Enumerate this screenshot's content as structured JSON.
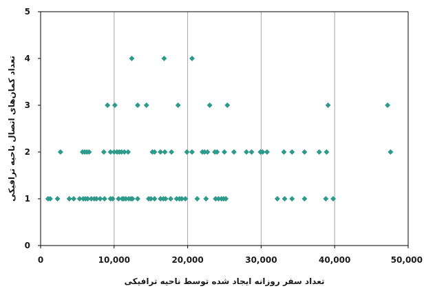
{
  "chart_data": {
    "type": "scatter",
    "title": "",
    "xlabel": "تعداد سفر روزانه ایجاد شده توسط ناحیه ترافیکی",
    "ylabel": "تعداد کمان‌های اتصال ناحیه ترافیکی",
    "xlim": [
      0,
      50000
    ],
    "ylim": [
      0,
      5
    ],
    "x_ticks": [
      0,
      10000,
      20000,
      30000,
      40000,
      50000
    ],
    "x_tick_labels": [
      "0",
      "10,000",
      "20,000",
      "30,000",
      "40,000",
      "50,000"
    ],
    "y_ticks": [
      0,
      1,
      2,
      3,
      4,
      5
    ],
    "y_tick_labels": [
      "0",
      "1",
      "2",
      "3",
      "4",
      "5"
    ],
    "grid": {
      "vertical": true,
      "horizontal": false
    },
    "legend": "none",
    "marker_color": "#2e9a8a",
    "grid_color": "#a6a6a6",
    "series": [
      {
        "points": [
          [
            1000,
            1
          ],
          [
            1300,
            1
          ],
          [
            2300,
            1
          ],
          [
            3900,
            1
          ],
          [
            4500,
            1
          ],
          [
            5300,
            1
          ],
          [
            5800,
            1
          ],
          [
            6100,
            1
          ],
          [
            6400,
            1
          ],
          [
            6900,
            1
          ],
          [
            7300,
            1
          ],
          [
            7600,
            1
          ],
          [
            8100,
            1
          ],
          [
            8700,
            1
          ],
          [
            9500,
            1
          ],
          [
            9800,
            1
          ],
          [
            10600,
            1
          ],
          [
            11100,
            1
          ],
          [
            11300,
            1
          ],
          [
            11600,
            1
          ],
          [
            12000,
            1
          ],
          [
            12300,
            1
          ],
          [
            12500,
            1
          ],
          [
            13200,
            1
          ],
          [
            14700,
            1
          ],
          [
            15000,
            1
          ],
          [
            15500,
            1
          ],
          [
            16300,
            1
          ],
          [
            16700,
            1
          ],
          [
            17000,
            1
          ],
          [
            17700,
            1
          ],
          [
            18500,
            1
          ],
          [
            18900,
            1
          ],
          [
            19200,
            1
          ],
          [
            19700,
            1
          ],
          [
            21300,
            1
          ],
          [
            22500,
            1
          ],
          [
            23800,
            1
          ],
          [
            24200,
            1
          ],
          [
            24600,
            1
          ],
          [
            24900,
            1
          ],
          [
            25200,
            1
          ],
          [
            32200,
            1
          ],
          [
            33200,
            1
          ],
          [
            34200,
            1
          ],
          [
            35900,
            1
          ],
          [
            38800,
            1
          ],
          [
            39800,
            1
          ],
          [
            2700,
            2
          ],
          [
            5700,
            2
          ],
          [
            6000,
            2
          ],
          [
            6300,
            2
          ],
          [
            6600,
            2
          ],
          [
            8600,
            2
          ],
          [
            9500,
            2
          ],
          [
            10000,
            2
          ],
          [
            10400,
            2
          ],
          [
            10700,
            2
          ],
          [
            11000,
            2
          ],
          [
            11400,
            2
          ],
          [
            11900,
            2
          ],
          [
            15200,
            2
          ],
          [
            15500,
            2
          ],
          [
            16300,
            2
          ],
          [
            16900,
            2
          ],
          [
            17800,
            2
          ],
          [
            19900,
            2
          ],
          [
            20600,
            2
          ],
          [
            22000,
            2
          ],
          [
            22300,
            2
          ],
          [
            22700,
            2
          ],
          [
            23700,
            2
          ],
          [
            24000,
            2
          ],
          [
            25000,
            2
          ],
          [
            26300,
            2
          ],
          [
            28000,
            2
          ],
          [
            28700,
            2
          ],
          [
            29900,
            2
          ],
          [
            30200,
            2
          ],
          [
            30800,
            2
          ],
          [
            33100,
            2
          ],
          [
            34200,
            2
          ],
          [
            35900,
            2
          ],
          [
            37900,
            2
          ],
          [
            38900,
            2
          ],
          [
            47600,
            2
          ],
          [
            9100,
            3
          ],
          [
            10100,
            3
          ],
          [
            13200,
            3
          ],
          [
            14400,
            3
          ],
          [
            18700,
            3
          ],
          [
            23000,
            3
          ],
          [
            25400,
            3
          ],
          [
            39100,
            3
          ],
          [
            47200,
            3
          ],
          [
            12400,
            4
          ],
          [
            16800,
            4
          ],
          [
            20600,
            4
          ]
        ]
      }
    ]
  }
}
